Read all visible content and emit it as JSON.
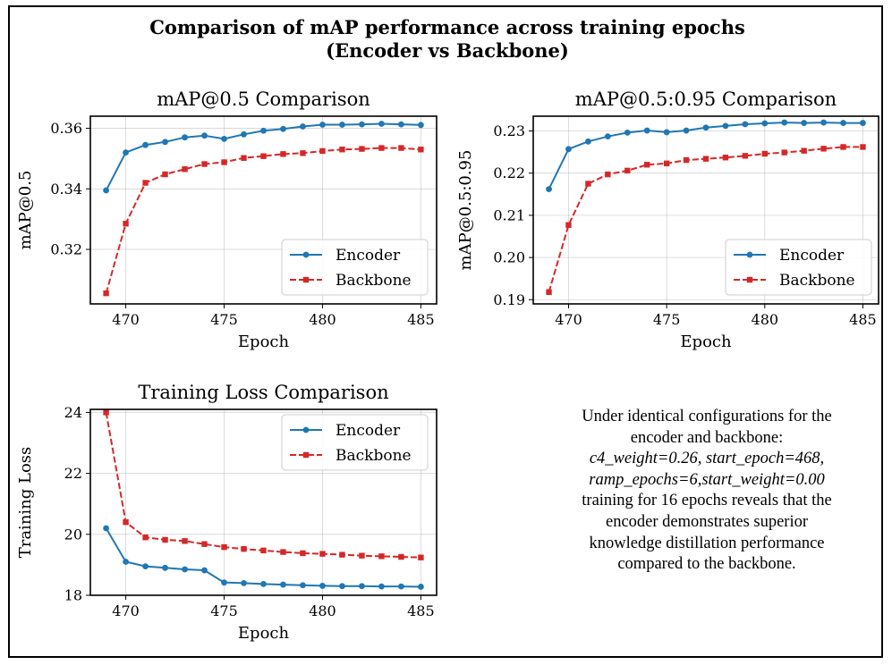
{
  "figure": {
    "title_line1": "Comparison of mAP performance across training epochs",
    "title_line2": "(Encoder vs Backbone)"
  },
  "chart_data": [
    {
      "type": "line",
      "title": "mAP@0.5 Comparison",
      "xlabel": "Epoch",
      "ylabel": "mAP@0.5",
      "x": [
        469,
        470,
        471,
        472,
        473,
        474,
        475,
        476,
        477,
        478,
        479,
        480,
        481,
        482,
        483,
        484,
        485
      ],
      "xlim": [
        468.2,
        485.8
      ],
      "ylim": [
        0.302,
        0.364
      ],
      "xticks": [
        470,
        475,
        480,
        485
      ],
      "yticks": [
        0.32,
        0.34,
        0.36
      ],
      "ytick_labels": [
        "0.32",
        "0.34",
        "0.36"
      ],
      "grid": true,
      "legend_position": "lower-right",
      "series": [
        {
          "name": "Encoder",
          "color": "#1f77b4",
          "marker": "circle",
          "linestyle": "solid",
          "values": [
            0.3395,
            0.352,
            0.3545,
            0.3555,
            0.357,
            0.3576,
            0.3565,
            0.358,
            0.3592,
            0.3598,
            0.3606,
            0.3612,
            0.3612,
            0.3613,
            0.3615,
            0.3613,
            0.3611
          ]
        },
        {
          "name": "Backbone",
          "color": "#d62728",
          "marker": "square",
          "linestyle": "dashed",
          "values": [
            0.3055,
            0.3285,
            0.342,
            0.3448,
            0.3465,
            0.3482,
            0.3488,
            0.3502,
            0.3508,
            0.3515,
            0.3518,
            0.3525,
            0.353,
            0.3532,
            0.3535,
            0.3535,
            0.353
          ]
        }
      ]
    },
    {
      "type": "line",
      "title": "mAP@0.5:0.95 Comparison",
      "xlabel": "Epoch",
      "ylabel": "mAP@0.5:0.95",
      "x": [
        469,
        470,
        471,
        472,
        473,
        474,
        475,
        476,
        477,
        478,
        479,
        480,
        481,
        482,
        483,
        484,
        485
      ],
      "xlim": [
        468.2,
        485.8
      ],
      "ylim": [
        0.189,
        0.2335
      ],
      "xticks": [
        470,
        475,
        480,
        485
      ],
      "yticks": [
        0.19,
        0.2,
        0.21,
        0.22,
        0.23
      ],
      "ytick_labels": [
        "0.19",
        "0.20",
        "0.21",
        "0.22",
        "0.23"
      ],
      "grid": true,
      "legend_position": "lower-right",
      "series": [
        {
          "name": "Encoder",
          "color": "#1f77b4",
          "marker": "circle",
          "linestyle": "solid",
          "values": [
            0.2162,
            0.2257,
            0.2275,
            0.2287,
            0.2296,
            0.2301,
            0.2297,
            0.2301,
            0.2308,
            0.2312,
            0.2316,
            0.2318,
            0.232,
            0.2319,
            0.232,
            0.2319,
            0.2319
          ]
        },
        {
          "name": "Backbone",
          "color": "#d62728",
          "marker": "square",
          "linestyle": "dashed",
          "values": [
            0.1918,
            0.2077,
            0.2175,
            0.2197,
            0.2206,
            0.222,
            0.2223,
            0.2231,
            0.2234,
            0.2237,
            0.2241,
            0.2246,
            0.2249,
            0.2253,
            0.2258,
            0.2262,
            0.2262
          ]
        }
      ]
    },
    {
      "type": "line",
      "title": "Training Loss Comparison",
      "xlabel": "Epoch",
      "ylabel": "Training Loss",
      "x": [
        469,
        470,
        471,
        472,
        473,
        474,
        475,
        476,
        477,
        478,
        479,
        480,
        481,
        482,
        483,
        484,
        485
      ],
      "xlim": [
        468.2,
        485.8
      ],
      "ylim": [
        18.0,
        24.1
      ],
      "xticks": [
        470,
        475,
        480,
        485
      ],
      "yticks": [
        18,
        20,
        22,
        24
      ],
      "ytick_labels": [
        "18",
        "20",
        "22",
        "24"
      ],
      "grid": true,
      "legend_position": "top-right",
      "series": [
        {
          "name": "Encoder",
          "color": "#1f77b4",
          "marker": "circle",
          "linestyle": "solid",
          "values": [
            20.2,
            19.1,
            18.95,
            18.9,
            18.85,
            18.82,
            18.42,
            18.4,
            18.37,
            18.35,
            18.33,
            18.31,
            18.3,
            18.3,
            18.29,
            18.29,
            18.28
          ]
        },
        {
          "name": "Backbone",
          "color": "#d62728",
          "marker": "square",
          "linestyle": "dashed",
          "values": [
            24.0,
            20.4,
            19.9,
            19.82,
            19.78,
            19.68,
            19.58,
            19.52,
            19.47,
            19.42,
            19.38,
            19.36,
            19.33,
            19.3,
            19.28,
            19.26,
            19.24
          ]
        }
      ]
    }
  ],
  "note": {
    "line1": "Under identical configurations for the",
    "line2": "encoder and backbone:",
    "line3": "c4_weight=0.26, start_epoch=468,",
    "line4": "ramp_epochs=6,start_weight=0.00",
    "line5": "training for 16 epochs reveals that the",
    "line6": "encoder demonstrates superior",
    "line7": "knowledge distillation performance",
    "line8": "compared to the backbone."
  }
}
